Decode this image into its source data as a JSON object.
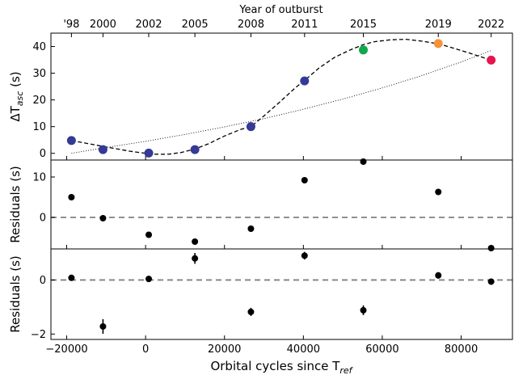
{
  "chart_data": {
    "type": "scatter",
    "xlabel": "Orbital cycles since T",
    "xlabel_sub": "ref",
    "xlim": [
      -24000,
      93000
    ],
    "xticks": [
      -20000,
      0,
      20000,
      40000,
      60000,
      80000
    ],
    "xtick_labels": [
      "−20000",
      "0",
      "20000",
      "40000",
      "60000",
      "80000"
    ],
    "top_axis": {
      "label": "Year of outburst",
      "ticks": [
        {
          "x": -18800,
          "label": "'98"
        },
        {
          "x": -10800,
          "label": "2000"
        },
        {
          "x": 800,
          "label": "2002"
        },
        {
          "x": 12500,
          "label": "2005"
        },
        {
          "x": 26700,
          "label": "2008"
        },
        {
          "x": 40300,
          "label": "2011"
        },
        {
          "x": 55200,
          "label": "2015"
        },
        {
          "x": 74200,
          "label": "2019"
        },
        {
          "x": 87600,
          "label": "2022"
        }
      ]
    },
    "panels": [
      {
        "id": "top",
        "ylabel": "ΔT",
        "ylabel_sub": "asc",
        "ylabel_suffix": " (s)",
        "ylim": [
          -2.5,
          45
        ],
        "yticks": [
          0,
          10,
          20,
          30,
          40
        ],
        "ytick_labels": [
          "0",
          "10",
          "20",
          "30",
          "40"
        ],
        "points": [
          {
            "x": -18800,
            "y": 4.8,
            "color": "#353a96"
          },
          {
            "x": -10800,
            "y": 1.4,
            "color": "#353a96"
          },
          {
            "x": 800,
            "y": 0.1,
            "color": "#353a96"
          },
          {
            "x": 12500,
            "y": 1.4,
            "color": "#353a96"
          },
          {
            "x": 26700,
            "y": 10.0,
            "color": "#353a96"
          },
          {
            "x": 40300,
            "y": 27.1,
            "color": "#353a96"
          },
          {
            "x": 55200,
            "y": 38.7,
            "color": "#10a84a"
          },
          {
            "x": 74200,
            "y": 41.1,
            "color": "#f5923a"
          },
          {
            "x": 87600,
            "y": 34.9,
            "color": "#e8134e"
          }
        ],
        "curves": [
          {
            "style": "dashed",
            "x": [
              -18800,
              -10000,
              -4000,
              0,
              2000,
              4000,
              6000,
              9000,
              12500,
              16000,
              20000,
              24000,
              26700,
              30000,
              34000,
              38000,
              40300,
              44000,
              48000,
              52000,
              55200,
              58000,
              62000,
              66000,
              70000,
              74200,
              78000,
              82000,
              87600
            ],
            "y": [
              4.8,
              2.4,
              0.8,
              0.0,
              -0.3,
              -0.35,
              -0.3,
              0.3,
              1.6,
              3.6,
              6.5,
              8.9,
              10.0,
              14.0,
              19.2,
              24.6,
              27.3,
              32.0,
              36.0,
              38.8,
              40.7,
              41.8,
              42.5,
              42.7,
              42.0,
              41.0,
              39.4,
              37.6,
              34.9
            ]
          },
          {
            "style": "dotted",
            "x": [
              -18800,
              -10000,
              0,
              10000,
              20000,
              30000,
              40000,
              50000,
              60000,
              70000,
              80000,
              87600
            ],
            "y": [
              0.0,
              2.2,
              4.5,
              7.1,
              9.9,
              13.0,
              16.5,
              20.3,
              24.5,
              29.1,
              34.2,
              38.5
            ]
          }
        ]
      },
      {
        "id": "middle",
        "ylabel": "Residuals (s)",
        "ylim": [
          -7.8,
          14.2
        ],
        "yticks": [
          0,
          10
        ],
        "ytick_labels": [
          "0",
          "10"
        ],
        "zero_line": true,
        "points": [
          {
            "x": -18800,
            "y": 5.0
          },
          {
            "x": -10800,
            "y": -0.2
          },
          {
            "x": 800,
            "y": -4.3
          },
          {
            "x": 12500,
            "y": -6.0
          },
          {
            "x": 26700,
            "y": -2.8
          },
          {
            "x": 40300,
            "y": 9.2
          },
          {
            "x": 55200,
            "y": 13.8
          },
          {
            "x": 74200,
            "y": 6.3
          },
          {
            "x": 87600,
            "y": -7.6
          }
        ]
      },
      {
        "id": "bottom",
        "ylabel": "Residuals (s)",
        "ylim": [
          -2.2,
          1.15
        ],
        "yticks": [
          -2,
          0
        ],
        "ytick_labels": [
          "−2",
          "0"
        ],
        "zero_line": true,
        "points": [
          {
            "x": -18800,
            "y": 0.08,
            "err": 0.05
          },
          {
            "x": -10800,
            "y": -1.72,
            "err": 0.27
          },
          {
            "x": 800,
            "y": 0.04,
            "err": 0.05
          },
          {
            "x": 12500,
            "y": 0.8,
            "err": 0.2
          },
          {
            "x": 26700,
            "y": -1.18,
            "err": 0.15
          },
          {
            "x": 40300,
            "y": 0.9,
            "err": 0.14
          },
          {
            "x": 55200,
            "y": -1.12,
            "err": 0.18
          },
          {
            "x": 74200,
            "y": 0.17,
            "err": 0.12
          },
          {
            "x": 87600,
            "y": -0.06,
            "err": 0.08
          }
        ]
      }
    ]
  }
}
